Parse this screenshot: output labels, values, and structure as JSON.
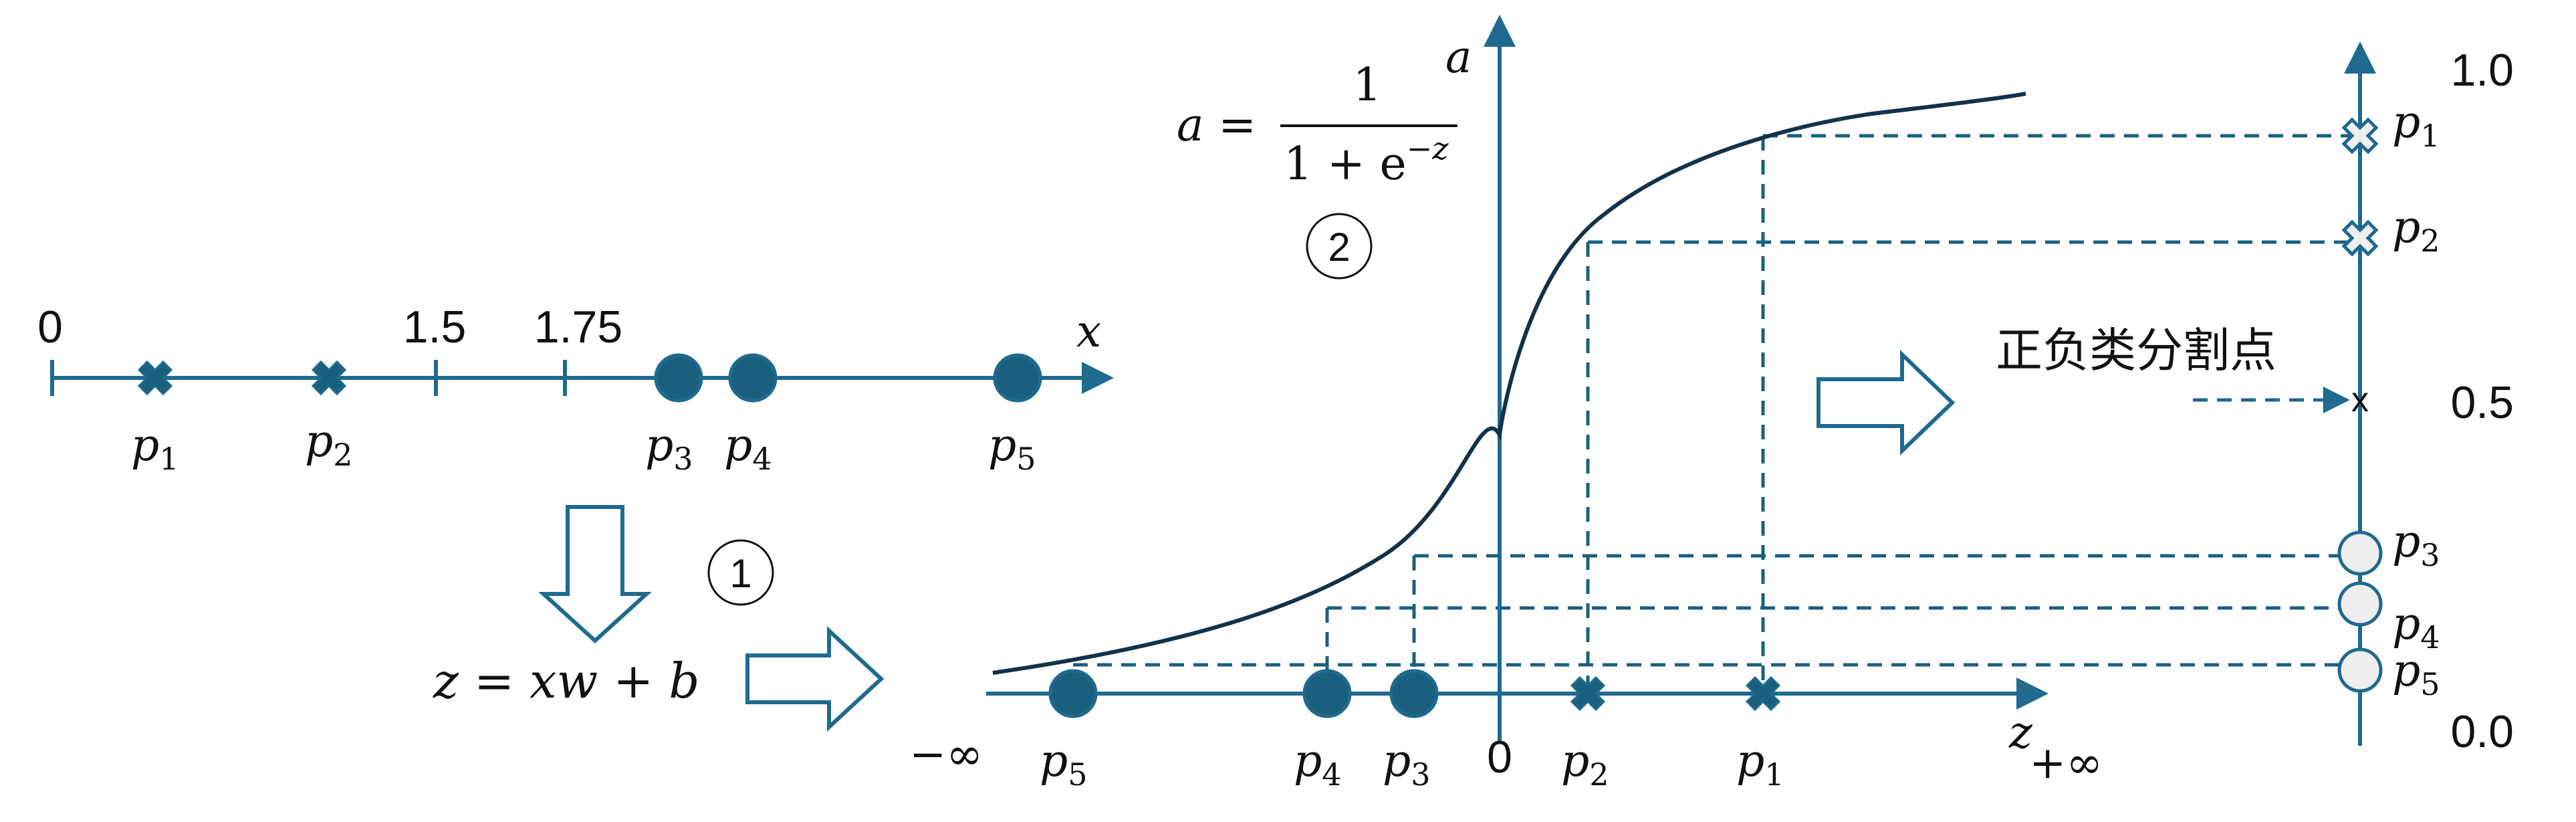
{
  "colors": {
    "axis": "#1f6a8e",
    "point_fill": "#1b5f7f",
    "curve": "#12324a",
    "dashed": "#1b5f7f",
    "arrow_outline": "#1f6a8e",
    "open_circle_fill": "#efefef",
    "open_circle_stroke": "#1f6a8e",
    "text": "#111111"
  },
  "left_axis": {
    "var_label": "x",
    "ticks": [
      "0",
      "1.5",
      "1.75"
    ],
    "points": [
      {
        "label": "p",
        "sub": "1",
        "marker": "cross"
      },
      {
        "label": "p",
        "sub": "2",
        "marker": "cross"
      },
      {
        "label": "p",
        "sub": "3",
        "marker": "circle"
      },
      {
        "label": "p",
        "sub": "4",
        "marker": "circle"
      },
      {
        "label": "p",
        "sub": "5",
        "marker": "circle"
      }
    ]
  },
  "step1": {
    "circled_number": "1",
    "formula": "z = xw + b"
  },
  "sigmoid_panel": {
    "x_axis_label": "z",
    "y_axis_label": "a",
    "neg_inf": "−∞",
    "pos_inf": "+∞",
    "origin": "0",
    "formula_lhs": "a =",
    "formula_num": "1",
    "formula_den_base": "1 + e",
    "formula_den_exp": "−z",
    "circled_number": "2",
    "points": [
      {
        "label": "p",
        "sub": "5",
        "marker": "circle"
      },
      {
        "label": "p",
        "sub": "4",
        "marker": "circle"
      },
      {
        "label": "p",
        "sub": "3",
        "marker": "circle"
      },
      {
        "label": "p",
        "sub": "2",
        "marker": "cross"
      },
      {
        "label": "p",
        "sub": "1",
        "marker": "cross"
      }
    ]
  },
  "right_axis": {
    "ticks": [
      "1.0",
      "0.5",
      "0.0"
    ],
    "threshold_text": "正负类分割点",
    "threshold_marker": "x",
    "points": [
      {
        "label": "p",
        "sub": "1",
        "marker": "open-cross"
      },
      {
        "label": "p",
        "sub": "2",
        "marker": "open-cross"
      },
      {
        "label": "p",
        "sub": "3",
        "marker": "open-circle"
      },
      {
        "label": "p",
        "sub": "4",
        "marker": "open-circle"
      },
      {
        "label": "p",
        "sub": "5",
        "marker": "open-circle"
      }
    ]
  }
}
